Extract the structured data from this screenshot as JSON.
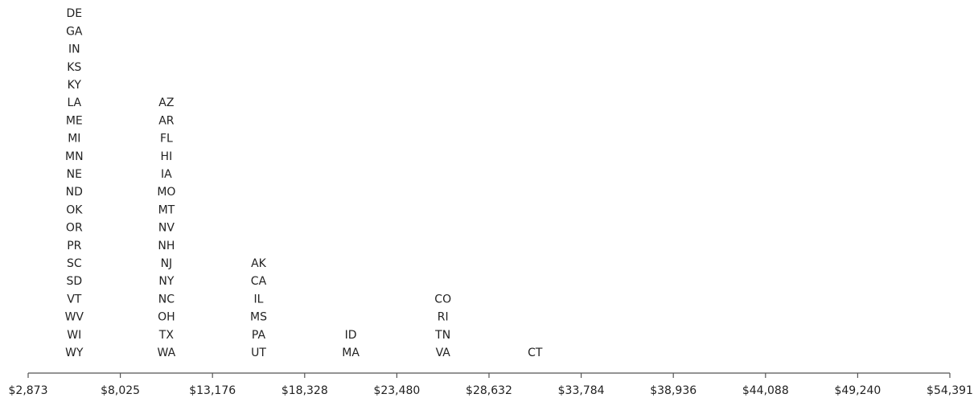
{
  "chart_data": {
    "type": "table",
    "title": "",
    "xlabel": "",
    "ylabel": "",
    "x_ticks": [
      "$2,873",
      "$8,025",
      "$13,176",
      "$18,328",
      "$23,480",
      "$28,632",
      "$33,784",
      "$38,936",
      "$44,088",
      "$49,240",
      "$54,391"
    ],
    "xlim": [
      2873,
      54391
    ],
    "columns": [
      {
        "x": 5449,
        "states": [
          "DE",
          "GA",
          "IN",
          "KS",
          "KY",
          "LA",
          "ME",
          "MI",
          "MN",
          "NE",
          "ND",
          "OK",
          "OR",
          "PR",
          "SC",
          "SD",
          "VT",
          "WV",
          "WI",
          "WY"
        ]
      },
      {
        "x": 10600,
        "states": [
          "AZ",
          "AR",
          "FL",
          "HI",
          "IA",
          "MO",
          "MT",
          "NV",
          "NH",
          "NJ",
          "NY",
          "NC",
          "OH",
          "TX",
          "WA"
        ]
      },
      {
        "x": 15752,
        "states": [
          "AK",
          "CA",
          "IL",
          "MS",
          "PA",
          "UT"
        ]
      },
      {
        "x": 20904,
        "states": [
          "ID",
          "MA"
        ]
      },
      {
        "x": 26056,
        "states": [
          "CO",
          "RI",
          "TN",
          "VA"
        ]
      },
      {
        "x": 31208,
        "states": [
          "CT"
        ]
      }
    ]
  }
}
